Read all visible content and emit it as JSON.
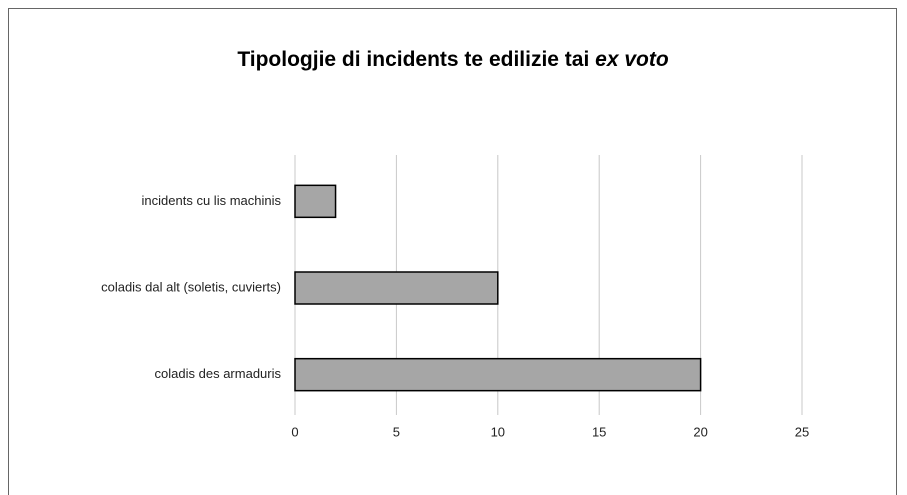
{
  "chart_data": {
    "type": "hbar",
    "title_parts": [
      {
        "text": "Tipologjie di incidents te edilizie tai",
        "italic": false
      },
      {
        "text": "ex voto",
        "italic": true
      }
    ],
    "categories": [
      "incidents cu lis machinis",
      "coladis dal alt (soletis, cuvierts)",
      "coladis des armaduris"
    ],
    "values": [
      2,
      10,
      20
    ],
    "color": "#a6a6a6",
    "xlim": [
      0,
      25
    ],
    "xticks": [
      0,
      5,
      10,
      15,
      20,
      25
    ],
    "grid": true
  }
}
